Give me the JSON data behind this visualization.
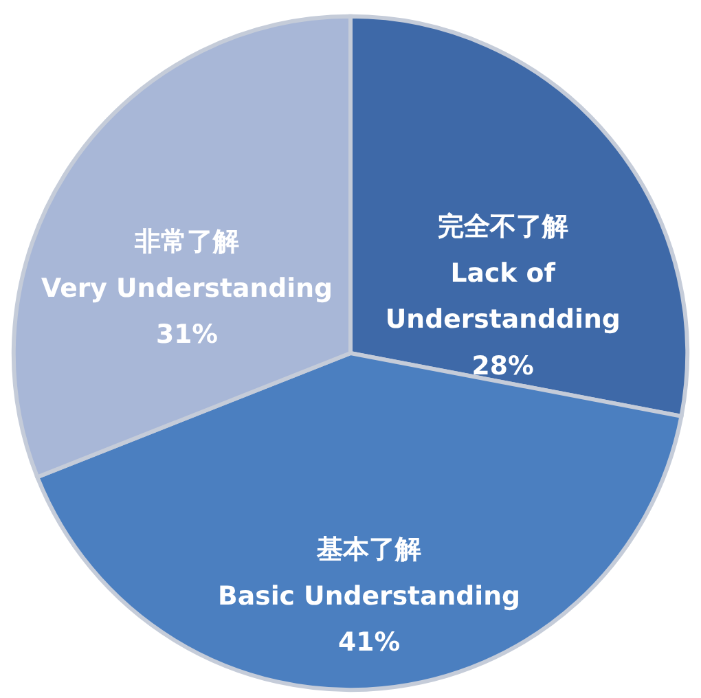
{
  "chart_data": {
    "type": "pie",
    "categories": [
      "完全不了解\nLack of\nUnderstandding",
      "基本了解\nBasic Understanding",
      "非常了解\nVery Understanding"
    ],
    "values": [
      28,
      41,
      31
    ],
    "colors": [
      "#3e69a8",
      "#4b7fc0",
      "#a8b7d7"
    ],
    "value_labels": [
      "28%",
      "41%",
      "31%"
    ],
    "legend": false
  }
}
